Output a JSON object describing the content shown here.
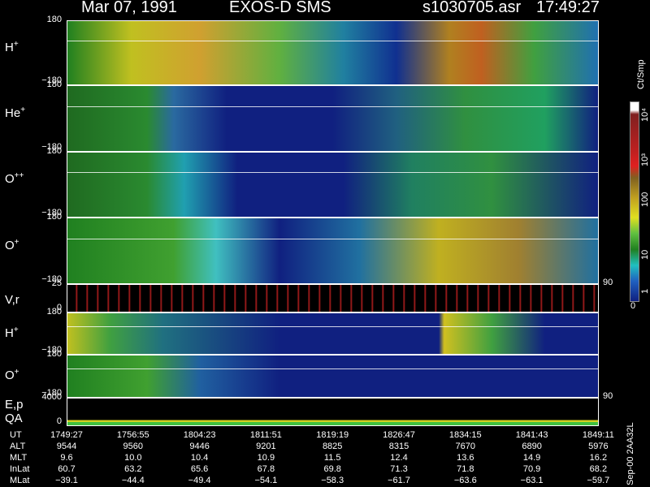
{
  "header": {
    "date": "Mar 07, 1991",
    "instrument": "EXOS-D SMS",
    "file": "s1030705.asr",
    "time": "17:49:27"
  },
  "panels": [
    {
      "species": "H",
      "charge": "+",
      "top_tick": "180",
      "bottom_tick": "−180"
    },
    {
      "species": "He",
      "charge": "+",
      "top_tick": "180",
      "bottom_tick": "−180"
    },
    {
      "species": "O",
      "charge": "++",
      "top_tick": "180",
      "bottom_tick": "−180"
    },
    {
      "species": "O",
      "charge": "+",
      "top_tick": "180",
      "bottom_tick": "−180"
    },
    {
      "species": "V,r",
      "top_tick": "25",
      "bottom_tick": "0",
      "right_tick": "90"
    },
    {
      "species": "H",
      "charge": "+",
      "top_tick": "180",
      "bottom_tick": "−180"
    },
    {
      "species": "O",
      "charge": "+",
      "top_tick": "180",
      "bottom_tick": "−180",
      "right_tick": "90"
    },
    {
      "species": "E,p",
      "species2": "QA",
      "top_tick": "4000",
      "bottom_tick": "0"
    }
  ],
  "colorbar": {
    "unit": "Ct/Smp",
    "labels": [
      "10⁴",
      "10³",
      "100",
      "10",
      "1"
    ],
    "zero": "0"
  },
  "footer_note": "Sep-00 2AA32L",
  "table": {
    "rows": [
      {
        "name": "UT",
        "cells": [
          "1749:27",
          "1756:55",
          "1804:23",
          "1811:51",
          "1819:19",
          "1826:47",
          "1834:15",
          "1841:43",
          "1849:11"
        ]
      },
      {
        "name": "ALT",
        "cells": [
          "9544",
          "9560",
          "9446",
          "9201",
          "8825",
          "8315",
          "7670",
          "6890",
          "5976"
        ]
      },
      {
        "name": "MLT",
        "cells": [
          "9.6",
          "10.0",
          "10.4",
          "10.9",
          "11.5",
          "12.4",
          "13.6",
          "14.9",
          "16.2"
        ]
      },
      {
        "name": "InLat",
        "cells": [
          "60.7",
          "63.2",
          "65.6",
          "67.8",
          "69.8",
          "71.3",
          "71.8",
          "70.9",
          "68.2"
        ]
      },
      {
        "name": "MLat",
        "cells": [
          "−39.1",
          "−44.4",
          "−49.4",
          "−54.1",
          "−58.3",
          "−61.7",
          "−63.6",
          "−63.1",
          "−59.7"
        ]
      }
    ]
  }
}
